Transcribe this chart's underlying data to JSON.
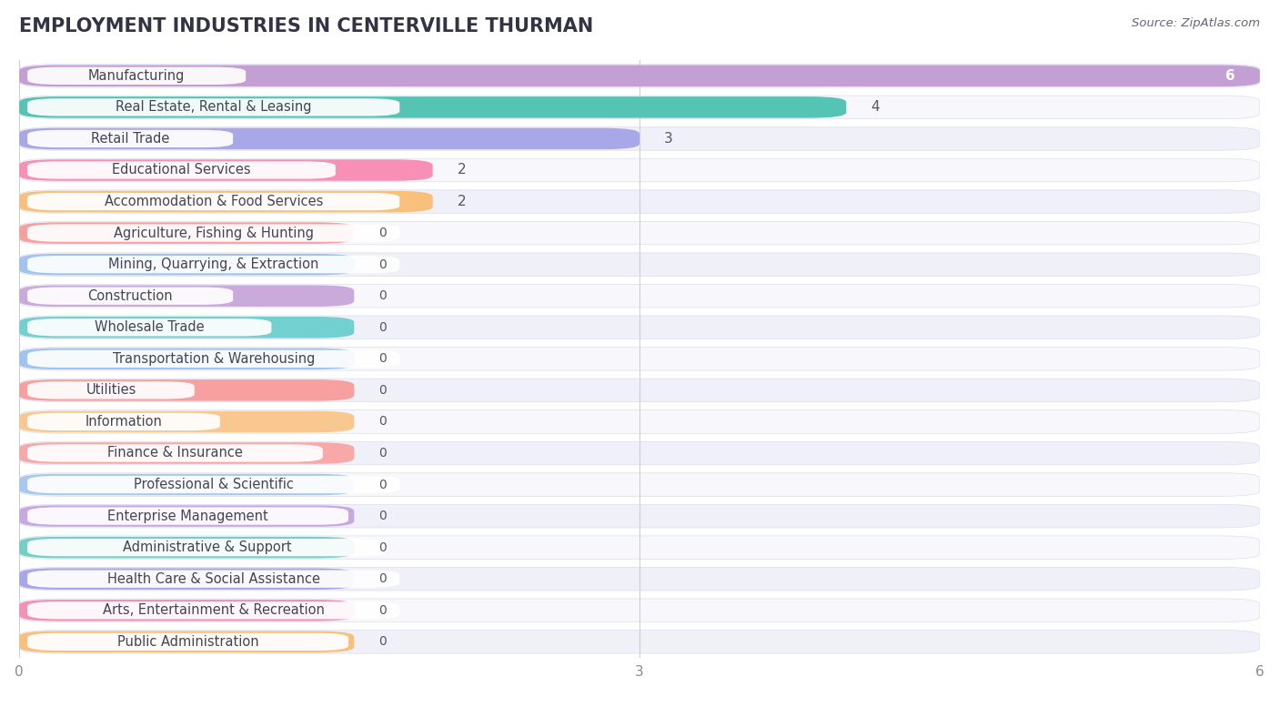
{
  "title": "EMPLOYMENT INDUSTRIES IN CENTERVILLE THURMAN",
  "source": "Source: ZipAtlas.com",
  "categories": [
    "Manufacturing",
    "Real Estate, Rental & Leasing",
    "Retail Trade",
    "Educational Services",
    "Accommodation & Food Services",
    "Agriculture, Fishing & Hunting",
    "Mining, Quarrying, & Extraction",
    "Construction",
    "Wholesale Trade",
    "Transportation & Warehousing",
    "Utilities",
    "Information",
    "Finance & Insurance",
    "Professional & Scientific",
    "Enterprise Management",
    "Administrative & Support",
    "Health Care & Social Assistance",
    "Arts, Entertainment & Recreation",
    "Public Administration"
  ],
  "values": [
    6,
    4,
    3,
    2,
    2,
    0,
    0,
    0,
    0,
    0,
    0,
    0,
    0,
    0,
    0,
    0,
    0,
    0,
    0
  ],
  "bar_colors": [
    "#c49fd4",
    "#55c4b5",
    "#a8a8e8",
    "#f890b5",
    "#f8c07a",
    "#f8a0a0",
    "#a0c4f0",
    "#caaada",
    "#72d0d0",
    "#a0c4f0",
    "#f8a0a0",
    "#f8c890",
    "#f8a8a8",
    "#a8c8f0",
    "#c8a8e0",
    "#72d0c8",
    "#a8a8e8",
    "#f890b5",
    "#f8c07a"
  ],
  "xlim": [
    0,
    6
  ],
  "xticks": [
    0,
    3,
    6
  ],
  "bg_color": "#ffffff",
  "row_alt_color": "#f0f0f8",
  "row_base_color": "#f8f8fc",
  "title_fontsize": 15,
  "label_fontsize": 10.5,
  "value_fontsize": 10,
  "zero_bar_width": 1.62
}
